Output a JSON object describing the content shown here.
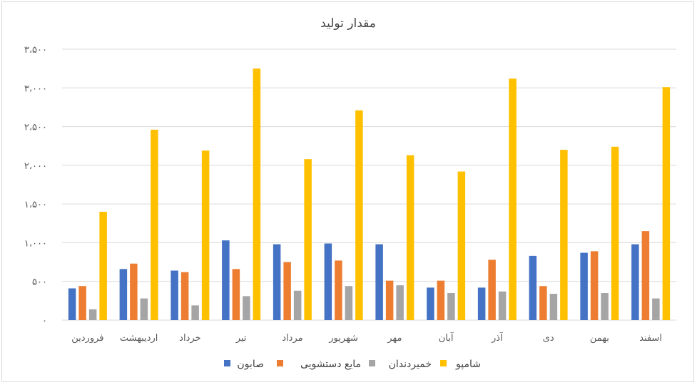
{
  "chart_data": {
    "type": "bar",
    "title": "مقدار تولید",
    "xlabel": "",
    "ylabel": "",
    "ylim": [
      0,
      3500
    ],
    "yticks": [
      0,
      500,
      1000,
      1500,
      2000,
      2500,
      3000,
      3500
    ],
    "ytick_labels": [
      "۰",
      "۵۰۰",
      "۱،۰۰۰",
      "۱،۵۰۰",
      "۲،۰۰۰",
      "۲،۵۰۰",
      "۳،۰۰۰",
      "۳،۵۰۰"
    ],
    "grid": true,
    "legend_position": "bottom",
    "categories": [
      "فروردین",
      "اردیبهشت",
      "خرداد",
      "تیر",
      "مرداد",
      "شهریور",
      "مهر",
      "آبان",
      "آذر",
      "دی",
      "بهمن",
      "اسفند"
    ],
    "series": [
      {
        "name": "صابون",
        "color": "#4472c4",
        "values": [
          410,
          660,
          640,
          1030,
          980,
          990,
          980,
          420,
          420,
          830,
          870,
          980
        ]
      },
      {
        "name": "مایع دستشویی",
        "color": "#ed7d31",
        "values": [
          440,
          730,
          620,
          660,
          750,
          770,
          510,
          510,
          780,
          440,
          890,
          1150
        ]
      },
      {
        "name": "خمیردندان",
        "color": "#a5a5a5",
        "values": [
          140,
          280,
          190,
          310,
          380,
          440,
          450,
          350,
          370,
          340,
          350,
          280
        ]
      },
      {
        "name": "شامپو",
        "color": "#ffc000",
        "values": [
          1400,
          2460,
          2190,
          3250,
          2080,
          2710,
          2130,
          1920,
          3120,
          2200,
          2240,
          3010
        ]
      }
    ]
  }
}
